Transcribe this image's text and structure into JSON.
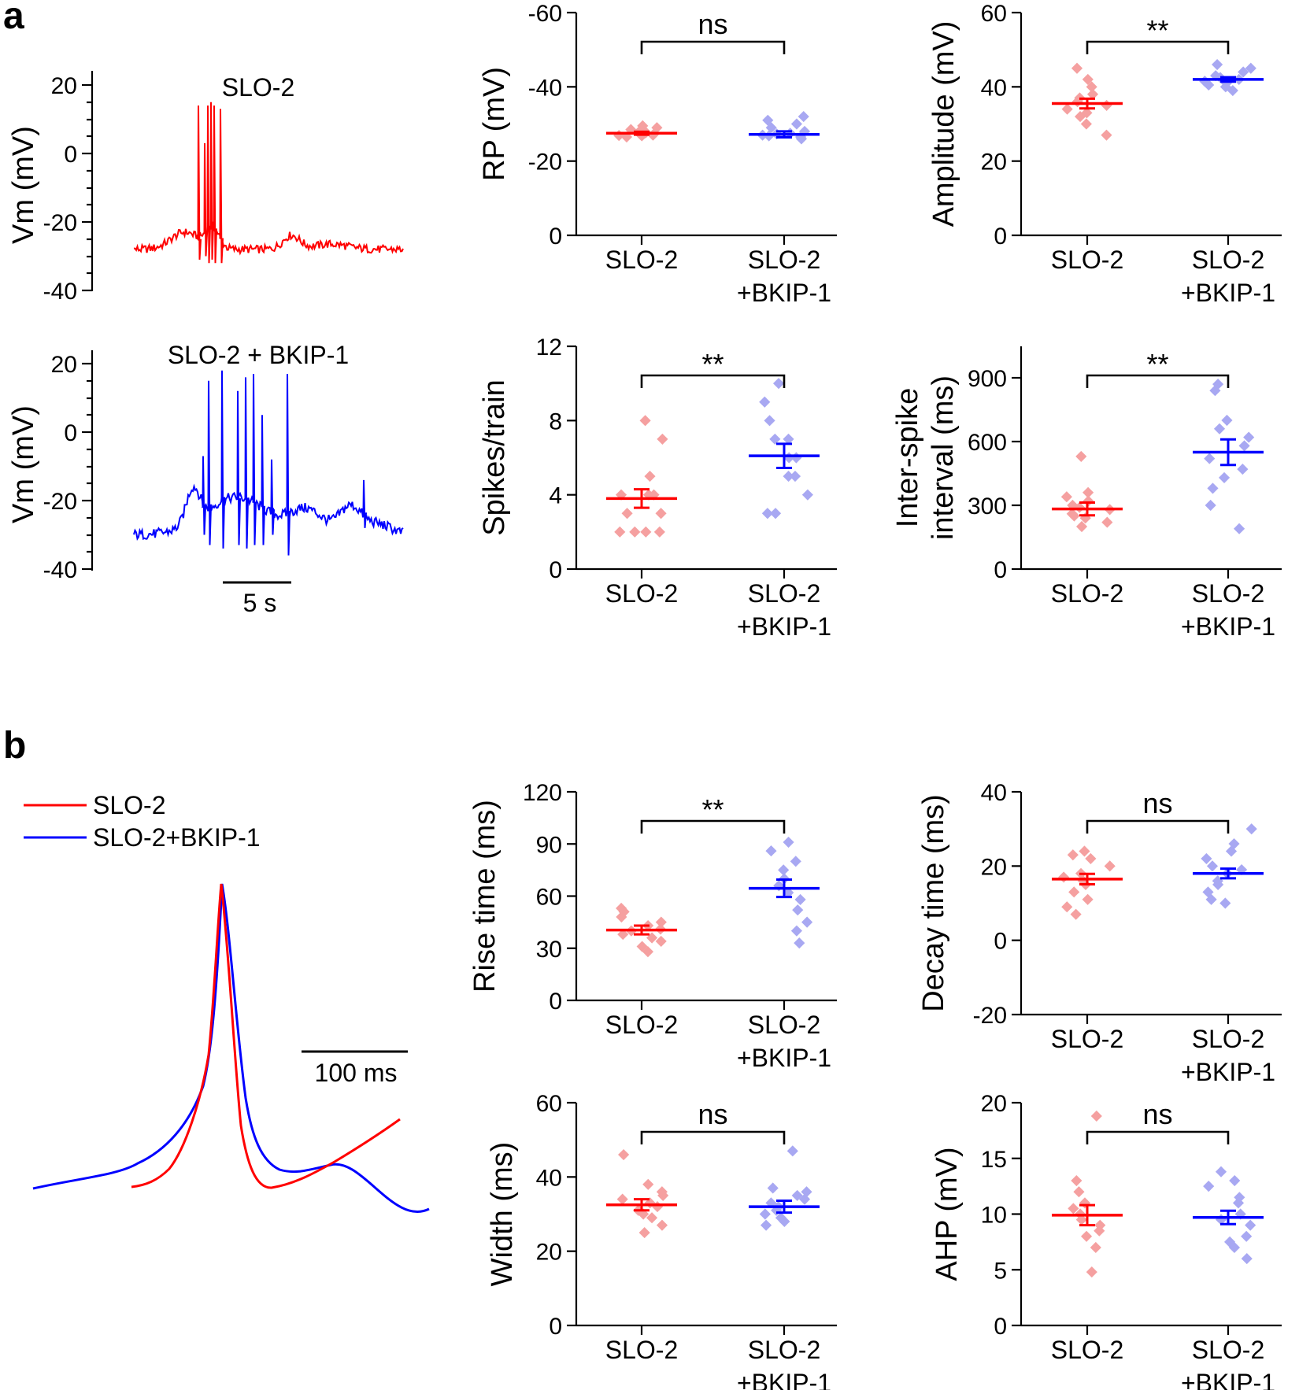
{
  "panel_letters": [
    "a",
    "b"
  ],
  "colors": {
    "slo2": "#ff0000",
    "slo2_bkip1": "#0000ff",
    "axis": "#000000"
  },
  "traces": {
    "top": {
      "label": "SLO-2",
      "ylabel": "Vm (mV)",
      "ticks": [
        "20",
        "0",
        "-20",
        "-40"
      ],
      "color": "#ff0000"
    },
    "bottom": {
      "label": "SLO-2 + BKIP-1",
      "ylabel": "Vm (mV)",
      "ticks": [
        "20",
        "0",
        "-20",
        "-40"
      ],
      "scale_bar": "5 s",
      "color": "#0000ff"
    }
  },
  "ap_overlay": {
    "legend": [
      {
        "label": "SLO-2",
        "color": "#ff0000"
      },
      {
        "label": "SLO-2+BKIP-1",
        "color": "#0000ff"
      }
    ],
    "scale_bar": "100 ms"
  },
  "chart_data": [
    {
      "id": "rp",
      "type": "scatter",
      "ylabel": "RP (mV)",
      "ylim": [
        0,
        -60
      ],
      "yticks": [
        0,
        -20,
        -40,
        -60
      ],
      "ytick_labels": [
        "0",
        "-20",
        "-40",
        "-60"
      ],
      "categories": [
        "SLO-2",
        "SLO-2\n+BKIP-1"
      ],
      "category_lines": [
        [
          "SLO-2"
        ],
        [
          "SLO-2",
          "+BKIP-1"
        ]
      ],
      "means": [
        -27.5,
        -27.2
      ],
      "sems": [
        0.4,
        0.8
      ],
      "points": [
        [
          -26.5,
          -27,
          -27.5,
          -28,
          -28.5,
          -29,
          -27.2,
          -26.8,
          -28.2,
          -29.5,
          -26.9,
          -27.7
        ],
        [
          -26,
          -26.5,
          -27,
          -27.5,
          -28,
          -29,
          -30,
          -31,
          -32,
          -26.8,
          -27.3
        ]
      ],
      "significance": "ns"
    },
    {
      "id": "amplitude",
      "type": "scatter",
      "ylabel": "Amplitude (mV)",
      "ylim": [
        0,
        60
      ],
      "yticks": [
        0,
        20,
        40,
        60
      ],
      "ytick_labels": [
        "0",
        "20",
        "40",
        "60"
      ],
      "categories": [
        "SLO-2",
        "SLO-2\n+BKIP-1"
      ],
      "category_lines": [
        [
          "SLO-2"
        ],
        [
          "SLO-2",
          "+BKIP-1"
        ]
      ],
      "means": [
        35.5,
        42
      ],
      "sems": [
        1.3,
        0.6
      ],
      "points": [
        [
          27,
          30,
          32,
          33,
          34,
          35,
          36,
          37,
          38,
          40,
          42,
          45
        ],
        [
          39,
          40,
          41,
          41.5,
          42,
          42.5,
          43,
          44,
          45,
          46,
          40.5
        ]
      ],
      "significance": "**"
    },
    {
      "id": "spikes",
      "type": "scatter",
      "ylabel": "Spikes/train",
      "ylim": [
        0,
        12
      ],
      "yticks": [
        0,
        4,
        8,
        12
      ],
      "ytick_labels": [
        "0",
        "4",
        "8",
        "12"
      ],
      "categories": [
        "SLO-2",
        "SLO-2\n+BKIP-1"
      ],
      "category_lines": [
        [
          "SLO-2"
        ],
        [
          "SLO-2",
          "+BKIP-1"
        ]
      ],
      "means": [
        3.8,
        6.1
      ],
      "sems": [
        0.5,
        0.65
      ],
      "points": [
        [
          2,
          2,
          2,
          2,
          3,
          3,
          4,
          4,
          4,
          5,
          7,
          8
        ],
        [
          3,
          3,
          4,
          5,
          5,
          6,
          6,
          7,
          7,
          8,
          9,
          10
        ]
      ],
      "significance": "**"
    },
    {
      "id": "isi",
      "type": "scatter",
      "ylabel_lines": [
        "Inter-spike",
        "interval (ms)"
      ],
      "ylim": [
        0,
        1050
      ],
      "yticks": [
        0,
        300,
        600,
        900
      ],
      "ytick_labels": [
        "0",
        "300",
        "600",
        "900"
      ],
      "categories": [
        "SLO-2",
        "SLO-2\n+BKIP-1"
      ],
      "category_lines": [
        [
          "SLO-2"
        ],
        [
          "SLO-2",
          "+BKIP-1"
        ]
      ],
      "means": [
        283,
        550
      ],
      "sems": [
        30,
        60
      ],
      "points": [
        [
          200,
          220,
          240,
          250,
          260,
          280,
          290,
          300,
          320,
          340,
          360,
          530
        ],
        [
          190,
          300,
          380,
          430,
          470,
          520,
          580,
          620,
          660,
          700,
          840,
          870
        ]
      ],
      "significance": "**"
    },
    {
      "id": "rise",
      "type": "scatter",
      "ylabel": "Rise time (ms)",
      "ylim": [
        0,
        120
      ],
      "yticks": [
        0,
        30,
        60,
        90,
        120
      ],
      "ytick_labels": [
        "0",
        "30",
        "60",
        "90",
        "120"
      ],
      "categories": [
        "SLO-2",
        "SLO-2\n+BKIP-1"
      ],
      "category_lines": [
        [
          "SLO-2"
        ],
        [
          "SLO-2",
          "+BKIP-1"
        ]
      ],
      "means": [
        40.5,
        64.5
      ],
      "sems": [
        2.5,
        5
      ],
      "points": [
        [
          28,
          31,
          34,
          36,
          38,
          40,
          41,
          43,
          45,
          48,
          51,
          53
        ],
        [
          33,
          40,
          45,
          52,
          58,
          62,
          66,
          70,
          75,
          80,
          86,
          91
        ]
      ],
      "significance": "**"
    },
    {
      "id": "decay",
      "type": "scatter",
      "ylabel": "Decay time (ms)",
      "ylim": [
        -20,
        40
      ],
      "yticks": [
        -20,
        0,
        20,
        40
      ],
      "ytick_labels": [
        "-20",
        "0",
        "20",
        "40"
      ],
      "categories": [
        "SLO-2",
        "SLO-2\n+BKIP-1"
      ],
      "category_lines": [
        [
          "SLO-2"
        ],
        [
          "SLO-2",
          "+BKIP-1"
        ]
      ],
      "means": [
        16.5,
        18
      ],
      "sems": [
        1.4,
        1.3
      ],
      "points": [
        [
          7,
          9,
          11,
          13,
          15,
          16,
          17,
          18,
          20,
          22,
          23,
          24
        ],
        [
          10,
          11,
          13,
          15,
          16,
          18,
          19,
          20,
          22,
          24,
          26,
          30
        ]
      ],
      "significance": "ns"
    },
    {
      "id": "width",
      "type": "scatter",
      "ylabel": "Width (ms)",
      "ylim": [
        0,
        60
      ],
      "yticks": [
        0,
        20,
        40,
        60
      ],
      "ytick_labels": [
        "0",
        "20",
        "40",
        "60"
      ],
      "categories": [
        "SLO-2",
        "SLO-2\n+BKIP-1"
      ],
      "category_lines": [
        [
          "SLO-2"
        ],
        [
          "SLO-2",
          "+BKIP-1"
        ]
      ],
      "means": [
        32.5,
        32
      ],
      "sems": [
        1.5,
        1.6
      ],
      "points": [
        [
          25,
          27,
          29,
          30,
          31,
          32,
          33,
          34,
          35,
          36,
          38,
          46
        ],
        [
          27,
          28,
          29,
          30,
          31,
          32,
          33,
          34,
          35,
          36,
          37,
          47
        ]
      ],
      "significance": "ns"
    },
    {
      "id": "ahp",
      "type": "scatter",
      "ylabel": "AHP (mV)",
      "ylim": [
        0,
        20
      ],
      "yticks": [
        0,
        5,
        10,
        15,
        20
      ],
      "ytick_labels": [
        "0",
        "5",
        "10",
        "15",
        "20"
      ],
      "categories": [
        "SLO-2",
        "SLO-2\n+BKIP-1"
      ],
      "category_lines": [
        [
          "SLO-2"
        ],
        [
          "SLO-2",
          "+BKIP-1"
        ]
      ],
      "means": [
        9.9,
        9.7
      ],
      "sems": [
        0.9,
        0.6
      ],
      "points": [
        [
          4.8,
          7,
          8,
          8.5,
          9,
          9.5,
          10,
          10.5,
          11,
          12,
          13,
          18.8
        ],
        [
          6,
          7,
          7.5,
          8,
          9,
          9.5,
          10,
          11,
          11.5,
          12.5,
          13,
          13.8
        ]
      ],
      "significance": "ns"
    }
  ]
}
